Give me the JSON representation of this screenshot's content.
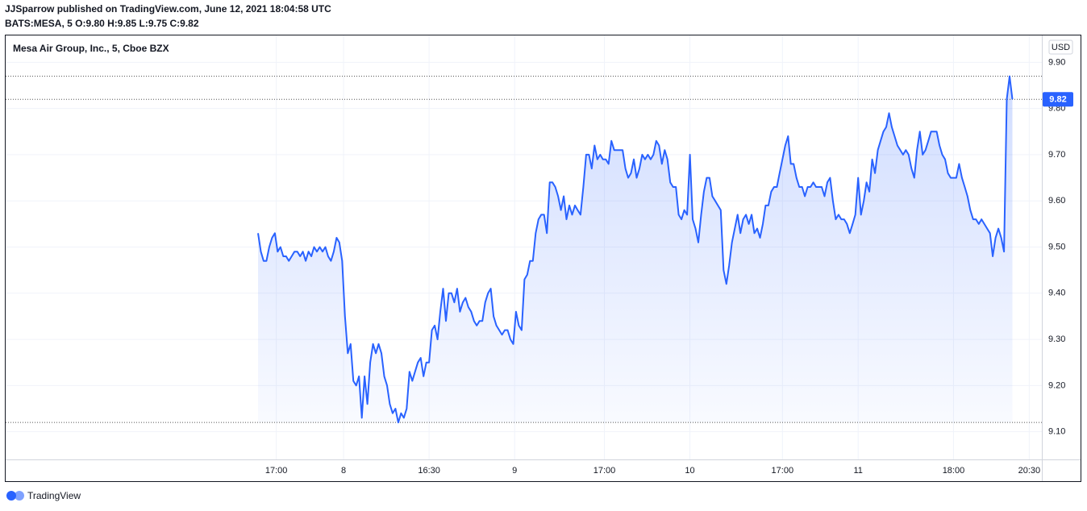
{
  "header": {
    "publisher_line": "JJSparrow published on TradingView.com, June 12, 2021 18:04:58 UTC",
    "symbol_line": "BATS:MESA, 5  O:9.80 H:9.85 L:9.75 C:9.82"
  },
  "footer": {
    "brand": "TradingView"
  },
  "chart_data": {
    "type": "line",
    "title": "Mesa Air Group, Inc., 5, Cboe BZX",
    "y_unit_label": "USD",
    "color": "#2962ff",
    "grid": true,
    "values": [
      9.53,
      9.49,
      9.47,
      9.47,
      9.5,
      9.52,
      9.53,
      9.49,
      9.5,
      9.48,
      9.48,
      9.47,
      9.48,
      9.49,
      9.49,
      9.48,
      9.49,
      9.47,
      9.49,
      9.48,
      9.5,
      9.49,
      9.5,
      9.49,
      9.5,
      9.48,
      9.47,
      9.49,
      9.52,
      9.51,
      9.47,
      9.35,
      9.27,
      9.29,
      9.21,
      9.2,
      9.22,
      9.13,
      9.22,
      9.16,
      9.25,
      9.29,
      9.27,
      9.29,
      9.27,
      9.22,
      9.2,
      9.16,
      9.14,
      9.15,
      9.12,
      9.14,
      9.13,
      9.15,
      9.23,
      9.21,
      9.23,
      9.25,
      9.26,
      9.22,
      9.25,
      9.25,
      9.32,
      9.33,
      9.3,
      9.36,
      9.41,
      9.34,
      9.4,
      9.4,
      9.38,
      9.41,
      9.36,
      9.38,
      9.39,
      9.37,
      9.36,
      9.34,
      9.33,
      9.34,
      9.34,
      9.38,
      9.4,
      9.41,
      9.35,
      9.33,
      9.32,
      9.31,
      9.32,
      9.32,
      9.3,
      9.29,
      9.36,
      9.33,
      9.32,
      9.43,
      9.44,
      9.47,
      9.47,
      9.53,
      9.56,
      9.57,
      9.57,
      9.53,
      9.64,
      9.64,
      9.63,
      9.61,
      9.58,
      9.61,
      9.56,
      9.59,
      9.57,
      9.59,
      9.58,
      9.57,
      9.63,
      9.7,
      9.7,
      9.67,
      9.72,
      9.69,
      9.7,
      9.69,
      9.69,
      9.68,
      9.73,
      9.71,
      9.71,
      9.71,
      9.71,
      9.67,
      9.65,
      9.66,
      9.69,
      9.65,
      9.67,
      9.7,
      9.69,
      9.7,
      9.69,
      9.7,
      9.73,
      9.72,
      9.68,
      9.71,
      9.69,
      9.64,
      9.63,
      9.63,
      9.57,
      9.56,
      9.58,
      9.57,
      9.7,
      9.56,
      9.54,
      9.51,
      9.57,
      9.62,
      9.65,
      9.65,
      9.61,
      9.6,
      9.59,
      9.58,
      9.45,
      9.42,
      9.46,
      9.51,
      9.54,
      9.57,
      9.53,
      9.56,
      9.57,
      9.55,
      9.57,
      9.53,
      9.54,
      9.52,
      9.55,
      9.59,
      9.59,
      9.62,
      9.63,
      9.63,
      9.66,
      9.69,
      9.72,
      9.74,
      9.68,
      9.68,
      9.65,
      9.63,
      9.63,
      9.61,
      9.63,
      9.63,
      9.64,
      9.63,
      9.63,
      9.63,
      9.61,
      9.64,
      9.65,
      9.6,
      9.56,
      9.57,
      9.56,
      9.56,
      9.55,
      9.53,
      9.55,
      9.57,
      9.65,
      9.57,
      9.6,
      9.64,
      9.62,
      9.69,
      9.66,
      9.71,
      9.73,
      9.75,
      9.76,
      9.79,
      9.76,
      9.74,
      9.72,
      9.71,
      9.7,
      9.71,
      9.7,
      9.67,
      9.65,
      9.71,
      9.75,
      9.7,
      9.71,
      9.73,
      9.75,
      9.75,
      9.75,
      9.72,
      9.7,
      9.69,
      9.66,
      9.65,
      9.65,
      9.65,
      9.68,
      9.65,
      9.63,
      9.61,
      9.58,
      9.56,
      9.56,
      9.55,
      9.56,
      9.55,
      9.54,
      9.53,
      9.48,
      9.52,
      9.54,
      9.52,
      9.49,
      9.82,
      9.87,
      9.82
    ],
    "xlim": [
      -90,
      279.5
    ],
    "xticks": [
      {
        "value": 6.5,
        "label": "17:00"
      },
      {
        "value": 30.5,
        "label": "8"
      },
      {
        "value": 61,
        "label": "16:30"
      },
      {
        "value": 91.5,
        "label": "9"
      },
      {
        "value": 123.5,
        "label": "17:00"
      },
      {
        "value": 154,
        "label": "10"
      },
      {
        "value": 187,
        "label": "17:00"
      },
      {
        "value": 214,
        "label": "11"
      },
      {
        "value": 248,
        "label": "18:00"
      },
      {
        "value": 275,
        "label": "20:30"
      }
    ],
    "ylim": [
      9.04,
      9.96
    ],
    "yticks": [
      {
        "value": 9.1,
        "label": "9.10"
      },
      {
        "value": 9.2,
        "label": "9.20"
      },
      {
        "value": 9.3,
        "label": "9.30"
      },
      {
        "value": 9.4,
        "label": "9.40"
      },
      {
        "value": 9.5,
        "label": "9.50"
      },
      {
        "value": 9.6,
        "label": "9.60"
      },
      {
        "value": 9.7,
        "label": "9.70"
      },
      {
        "value": 9.8,
        "label": "9.80"
      },
      {
        "value": 9.9,
        "label": "9.90"
      }
    ]
  }
}
